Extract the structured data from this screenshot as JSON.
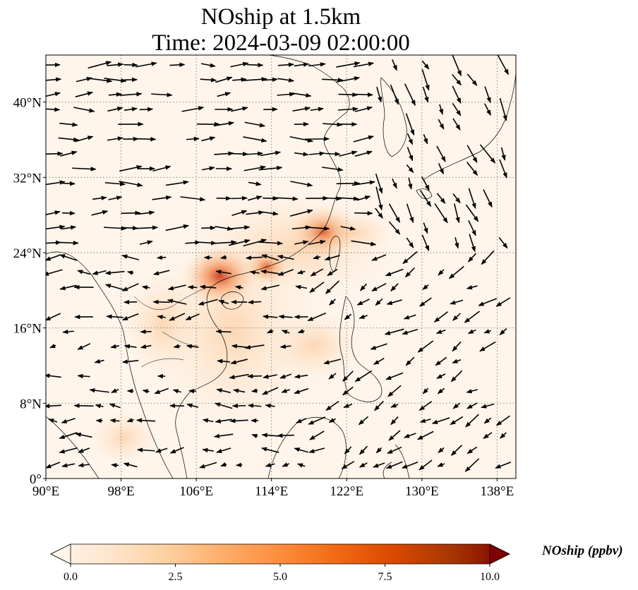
{
  "title": {
    "line1": "NOship at 1.5km",
    "line2": "Time: 2024-03-09 02:00:00"
  },
  "map": {
    "lon_range": [
      90,
      140
    ],
    "lat_range": [
      0,
      45
    ],
    "lon_ticks": [
      {
        "value": 90,
        "label": "90°E"
      },
      {
        "value": 98,
        "label": "98°E"
      },
      {
        "value": 106,
        "label": "106°E"
      },
      {
        "value": 114,
        "label": "114°E"
      },
      {
        "value": 122,
        "label": "122°E"
      },
      {
        "value": 130,
        "label": "130°E"
      },
      {
        "value": 138,
        "label": "138°E"
      }
    ],
    "lat_ticks": [
      {
        "value": 0,
        "label": "0°"
      },
      {
        "value": 8,
        "label": "8°N"
      },
      {
        "value": 16,
        "label": "16°N"
      },
      {
        "value": 24,
        "label": "24°N"
      },
      {
        "value": 32,
        "label": "32°N"
      },
      {
        "value": 40,
        "label": "40°N"
      }
    ],
    "gridlines": true,
    "hotspots": [
      {
        "lon": 108.5,
        "lat": 21.5,
        "value": 6.5
      },
      {
        "lon": 119.5,
        "lat": 26.2,
        "value": 5.5
      },
      {
        "lon": 113.5,
        "lat": 22.5,
        "value": 3.0
      }
    ]
  },
  "colorbar": {
    "min": 0.0,
    "max": 10.0,
    "extend": "both",
    "colors": [
      "#fff5eb",
      "#fee6ce",
      "#fdd0a2",
      "#fdae6b",
      "#fd8d3c",
      "#f16913",
      "#d94801",
      "#a63603",
      "#7f0000"
    ],
    "ticks": [
      {
        "value": 0.0,
        "label": "0.0"
      },
      {
        "value": 2.5,
        "label": "2.5"
      },
      {
        "value": 5.0,
        "label": "5.0"
      },
      {
        "value": 7.5,
        "label": "7.5"
      },
      {
        "value": 10.0,
        "label": "10.0"
      }
    ],
    "label": "NOship (ppbv)"
  }
}
